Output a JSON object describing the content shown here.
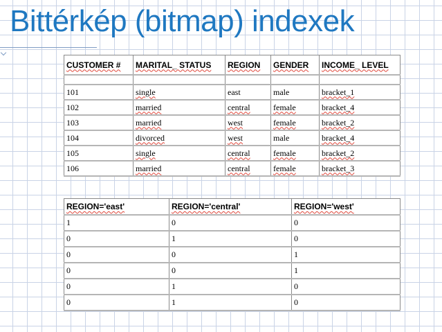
{
  "title": "Bittérkép (bitmap) indexek",
  "customer_table": {
    "headers": [
      "CUSTOMER #",
      "MARITAL_ STATUS",
      "REGION",
      "GENDER",
      "INCOME_ LEVEL"
    ],
    "rows": [
      [
        "101",
        "single",
        "east",
        "male",
        "bracket_1"
      ],
      [
        "102",
        "married",
        "central",
        "female",
        "bracket_4"
      ],
      [
        "103",
        "married",
        "west",
        "female",
        "bracket_2"
      ],
      [
        "104",
        "divorced",
        "west",
        "male",
        "bracket_4"
      ],
      [
        "105",
        "single",
        "central",
        "female",
        "bracket_2"
      ],
      [
        "106",
        "married",
        "central",
        "female",
        "bracket_3"
      ]
    ]
  },
  "bitmap_table": {
    "headers": [
      "REGION='east'",
      "REGION='central'",
      "REGION='west'"
    ],
    "rows": [
      [
        "1",
        "0",
        "0"
      ],
      [
        "0",
        "1",
        "0"
      ],
      [
        "0",
        "0",
        "1"
      ],
      [
        "0",
        "0",
        "1"
      ],
      [
        "0",
        "1",
        "0"
      ],
      [
        "0",
        "1",
        "0"
      ]
    ]
  }
}
